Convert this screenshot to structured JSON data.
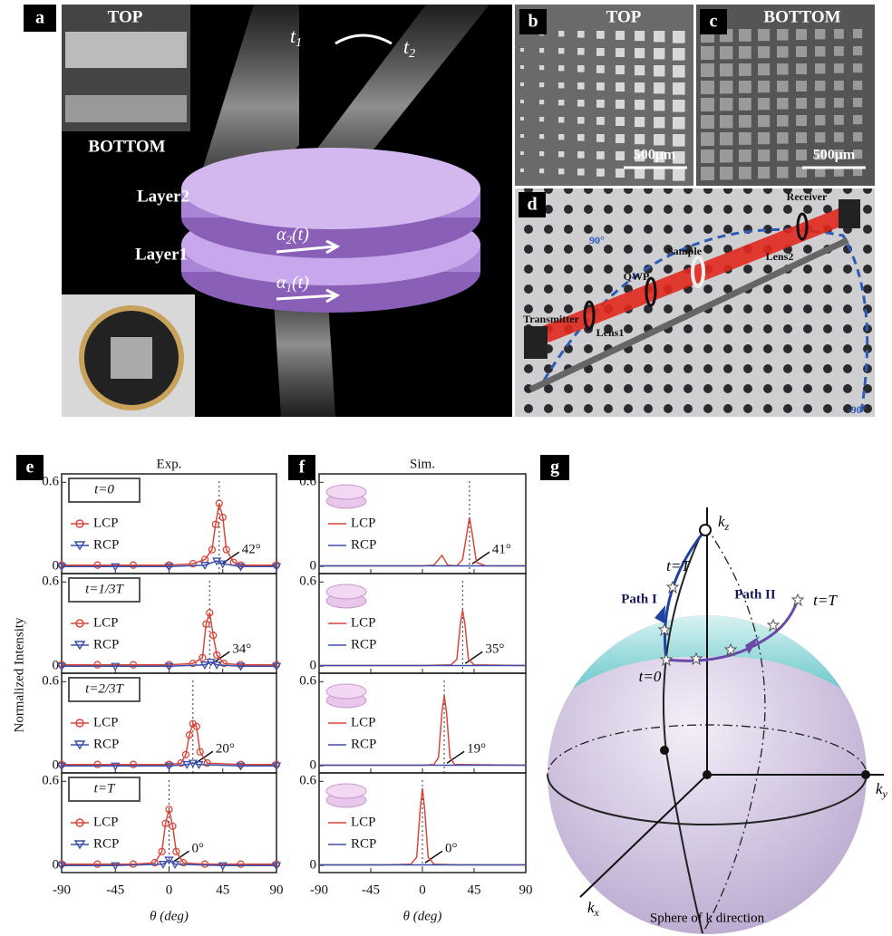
{
  "panel_a": {
    "label": "a",
    "inset_top": "TOP",
    "inset_bottom": "BOTTOM",
    "time_start": {
      "base": "t",
      "sub": "1"
    },
    "time_end": {
      "base": "t",
      "sub": "2"
    },
    "layer2": "Layer2",
    "layer1": "Layer1",
    "angle2": {
      "base": "α",
      "sub": "2",
      "tail": "(t)"
    },
    "angle1": {
      "base": "α",
      "sub": "1",
      "tail": "(t)"
    }
  },
  "panel_b": {
    "label": "b",
    "title": "TOP",
    "scale": "500μm"
  },
  "panel_c": {
    "label": "c",
    "title": "BOTTOM",
    "scale": "500μm"
  },
  "panel_d": {
    "label": "d",
    "receiver": "Receiver",
    "lens2": "Lens2",
    "sample": "Sample",
    "qwp": "QWP",
    "transmitter": "Transmitter",
    "lens1": "Lens1",
    "angle_pos": "90°",
    "angle_neg": "-90°"
  },
  "chart_data": [
    {
      "type": "line",
      "label": "e",
      "title": "Exp.",
      "ylabel": "Normalized Intensity",
      "xlabel": "θ (deg)",
      "xlim": [
        -90,
        90
      ],
      "xticks": [
        -90,
        -45,
        0,
        45,
        90
      ],
      "markers": true,
      "subplots": [
        {
          "state": "t=0",
          "ylim": [
            -0.05,
            0.66
          ],
          "yticks": [
            0,
            0.6
          ],
          "peak": {
            "value": 42,
            "label": "42°"
          },
          "series": [
            {
              "name": "LCP",
              "color": "#d9473b",
              "x": [
                -90,
                -60,
                -30,
                0,
                20,
                30,
                36,
                39,
                42,
                45,
                48,
                54,
                60,
                90
              ],
              "values": [
                0.01,
                0.01,
                0.01,
                0.01,
                0.02,
                0.05,
                0.12,
                0.3,
                0.45,
                0.35,
                0.12,
                0.03,
                0.01,
                0.01
              ]
            },
            {
              "name": "RCP",
              "color": "#3b4fa8",
              "x": [
                -90,
                -45,
                0,
                30,
                40,
                45,
                60,
                90
              ],
              "values": [
                0,
                0,
                0,
                0.01,
                0.04,
                0.02,
                0,
                0
              ]
            }
          ]
        },
        {
          "state": "t=1/3T",
          "ylim": [
            -0.05,
            0.66
          ],
          "yticks": [
            0,
            0.6
          ],
          "peak": {
            "value": 34,
            "label": "34°"
          },
          "series": [
            {
              "name": "LCP",
              "color": "#d9473b",
              "x": [
                -90,
                -60,
                -30,
                0,
                20,
                28,
                31,
                34,
                37,
                40,
                46,
                60,
                90
              ],
              "values": [
                0.01,
                0.01,
                0.01,
                0.01,
                0.02,
                0.06,
                0.3,
                0.38,
                0.22,
                0.08,
                0.02,
                0.01,
                0.01
              ]
            },
            {
              "name": "RCP",
              "color": "#3b4fa8",
              "x": [
                -90,
                -45,
                0,
                30,
                35,
                40,
                60,
                90
              ],
              "values": [
                0,
                0,
                0,
                0.01,
                0.03,
                0.01,
                0,
                0
              ]
            }
          ]
        },
        {
          "state": "t=2/3T",
          "ylim": [
            -0.05,
            0.66
          ],
          "yticks": [
            0,
            0.6
          ],
          "peak": {
            "value": 20,
            "label": "20°"
          },
          "series": [
            {
              "name": "LCP",
              "color": "#d9473b",
              "x": [
                -90,
                -60,
                -30,
                0,
                10,
                14,
                17,
                20,
                23,
                26,
                32,
                60,
                90
              ],
              "values": [
                0.01,
                0.01,
                0.01,
                0.01,
                0.02,
                0.08,
                0.22,
                0.3,
                0.28,
                0.1,
                0.02,
                0.01,
                0.01
              ]
            },
            {
              "name": "RCP",
              "color": "#3b4fa8",
              "x": [
                -90,
                -45,
                0,
                15,
                20,
                25,
                60,
                90
              ],
              "values": [
                0,
                0,
                0,
                0.01,
                0.02,
                0.01,
                0,
                0
              ]
            }
          ]
        },
        {
          "state": "t=T",
          "ylim": [
            -0.05,
            0.66
          ],
          "yticks": [
            0,
            0.6
          ],
          "peak": {
            "value": 0,
            "label": "0°"
          },
          "series": [
            {
              "name": "LCP",
              "color": "#d9473b",
              "x": [
                -90,
                -60,
                -30,
                -12,
                -6,
                -3,
                0,
                3,
                6,
                12,
                30,
                60,
                90
              ],
              "values": [
                0.01,
                0.01,
                0.01,
                0.02,
                0.1,
                0.3,
                0.4,
                0.28,
                0.1,
                0.02,
                0.01,
                0.01,
                0.01
              ]
            },
            {
              "name": "RCP",
              "color": "#3b4fa8",
              "x": [
                -90,
                -45,
                -5,
                0,
                5,
                45,
                90
              ],
              "values": [
                0,
                0,
                0.01,
                0.04,
                0.01,
                0,
                0
              ]
            }
          ]
        }
      ]
    },
    {
      "type": "line",
      "label": "f",
      "title": "Sim.",
      "xlabel": "θ (deg)",
      "xlim": [
        -90,
        90
      ],
      "xticks": [
        -90,
        -45,
        0,
        45,
        90
      ],
      "markers": false,
      "subplots": [
        {
          "ylim": [
            -0.05,
            0.66
          ],
          "yticks": [
            0,
            0.6
          ],
          "peak": {
            "value": 41,
            "label": "41°"
          },
          "series": [
            {
              "name": "LCP",
              "color": "#d9473b",
              "x": [
                -90,
                -60,
                -30,
                0,
                10,
                17,
                22,
                30,
                35,
                38,
                41,
                44,
                47,
                55,
                90
              ],
              "values": [
                0.005,
                0.005,
                0.005,
                0.005,
                0.01,
                0.08,
                0.01,
                0.005,
                0.05,
                0.2,
                0.35,
                0.2,
                0.03,
                0.005,
                0.005
              ]
            },
            {
              "name": "RCP",
              "color": "#3b4fa8",
              "x": [
                -90,
                0,
                90
              ],
              "values": [
                0.005,
                0.005,
                0.005
              ]
            }
          ]
        },
        {
          "ylim": [
            -0.05,
            0.66
          ],
          "yticks": [
            0,
            0.6
          ],
          "peak": {
            "value": 35,
            "label": "35°"
          },
          "series": [
            {
              "name": "LCP",
              "color": "#d9473b",
              "x": [
                -90,
                -30,
                0,
                25,
                30,
                33,
                35,
                37,
                40,
                45,
                90
              ],
              "values": [
                0.005,
                0.005,
                0.005,
                0.01,
                0.05,
                0.3,
                0.4,
                0.3,
                0.05,
                0.01,
                0.005
              ]
            },
            {
              "name": "RCP",
              "color": "#3b4fa8",
              "x": [
                -90,
                0,
                90
              ],
              "values": [
                0.005,
                0.005,
                0.005
              ]
            }
          ]
        },
        {
          "ylim": [
            -0.05,
            0.66
          ],
          "yticks": [
            0,
            0.6
          ],
          "peak": {
            "value": 19,
            "label": "19°"
          },
          "series": [
            {
              "name": "LCP",
              "color": "#d9473b",
              "x": [
                -90,
                -30,
                0,
                10,
                14,
                17,
                19,
                21,
                24,
                28,
                90
              ],
              "values": [
                0.005,
                0.005,
                0.005,
                0.01,
                0.06,
                0.38,
                0.5,
                0.38,
                0.06,
                0.01,
                0.005
              ]
            },
            {
              "name": "RCP",
              "color": "#3b4fa8",
              "x": [
                -90,
                0,
                90
              ],
              "values": [
                0.005,
                0.005,
                0.005
              ]
            }
          ]
        },
        {
          "ylim": [
            -0.05,
            0.66
          ],
          "yticks": [
            0,
            0.6
          ],
          "peak": {
            "value": 0,
            "label": "0°"
          },
          "series": [
            {
              "name": "LCP",
              "color": "#d9473b",
              "x": [
                -90,
                -30,
                -10,
                -5,
                -2,
                0,
                2,
                5,
                10,
                30,
                90
              ],
              "values": [
                0.005,
                0.005,
                0.01,
                0.06,
                0.4,
                0.55,
                0.4,
                0.06,
                0.01,
                0.005,
                0.005
              ]
            },
            {
              "name": "RCP",
              "color": "#3b4fa8",
              "x": [
                -90,
                0,
                90
              ],
              "values": [
                0.005,
                0.005,
                0.005
              ]
            }
          ]
        }
      ]
    }
  ],
  "panel_g": {
    "label": "g",
    "axis_z": {
      "base": "k",
      "sub": "z"
    },
    "axis_y": {
      "base": "k",
      "sub": "y"
    },
    "axis_x": {
      "base": "k",
      "sub": "x"
    },
    "path1": "Path I",
    "path2": "Path II",
    "start": "t=0",
    "end1": "t=T",
    "end2": "t=T",
    "caption": "Sphere of k direction"
  }
}
